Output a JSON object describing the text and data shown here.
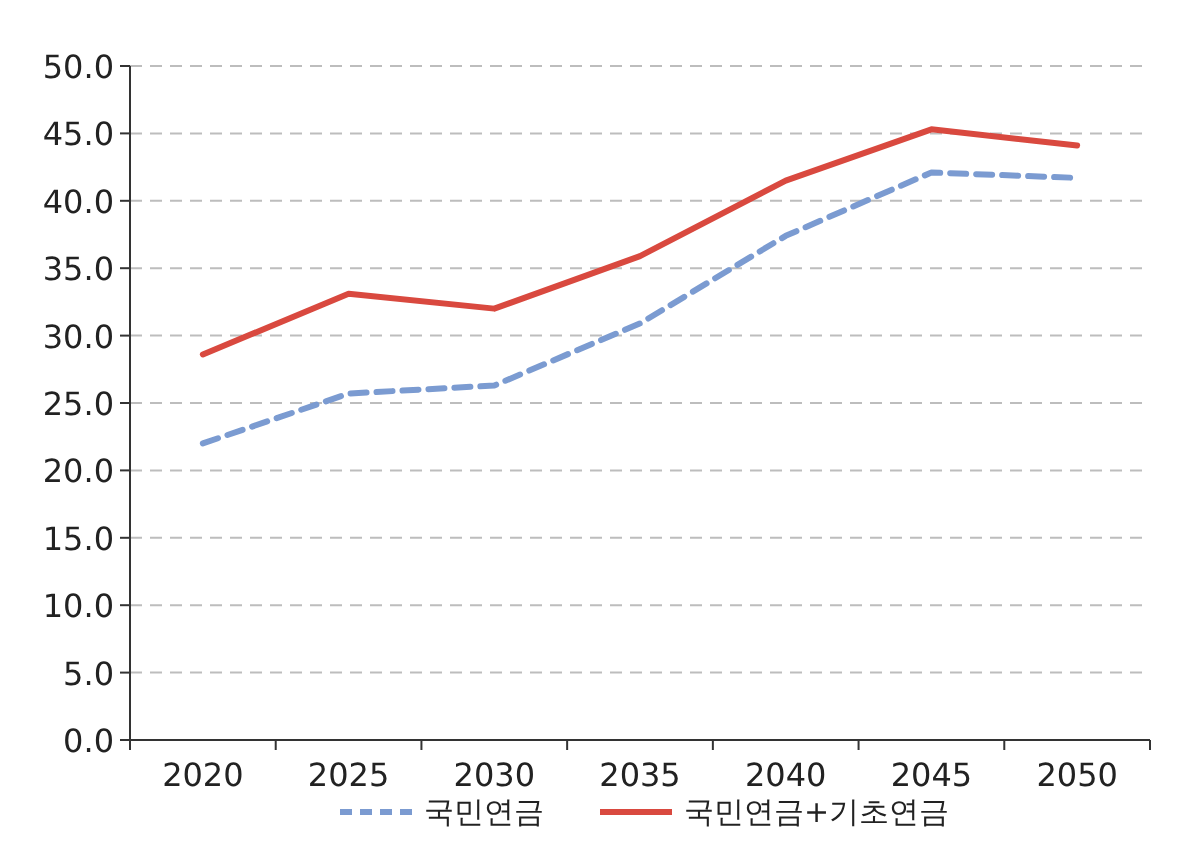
{
  "chart_data": {
    "type": "line",
    "categories": [
      "2020",
      "2025",
      "2030",
      "2035",
      "2040",
      "2045",
      "2050"
    ],
    "series": [
      {
        "name": "국민연금",
        "color": "#7b9bd1",
        "line_style": "dashed",
        "values": [
          22.0,
          25.7,
          26.3,
          30.9,
          37.4,
          42.1,
          41.7
        ]
      },
      {
        "name": "국민연금+기초연금",
        "color": "#d9493f",
        "line_style": "solid",
        "values": [
          28.6,
          33.1,
          32.0,
          35.9,
          41.5,
          45.3,
          44.1
        ]
      }
    ],
    "ylim": [
      0,
      50
    ],
    "yticks": [
      {
        "value": 0,
        "label": "0.0"
      },
      {
        "value": 5,
        "label": "5.0"
      },
      {
        "value": 10,
        "label": "10.0"
      },
      {
        "value": 15,
        "label": "15.0"
      },
      {
        "value": 20,
        "label": "20.0"
      },
      {
        "value": 25,
        "label": "25.0"
      },
      {
        "value": 30,
        "label": "30.0"
      },
      {
        "value": 35,
        "label": "35.0"
      },
      {
        "value": 40,
        "label": "40.0"
      },
      {
        "value": 45,
        "label": "45.0"
      },
      {
        "value": 50,
        "label": "50.0"
      }
    ],
    "grid": "y",
    "legend": "bottom",
    "marker": "none"
  }
}
